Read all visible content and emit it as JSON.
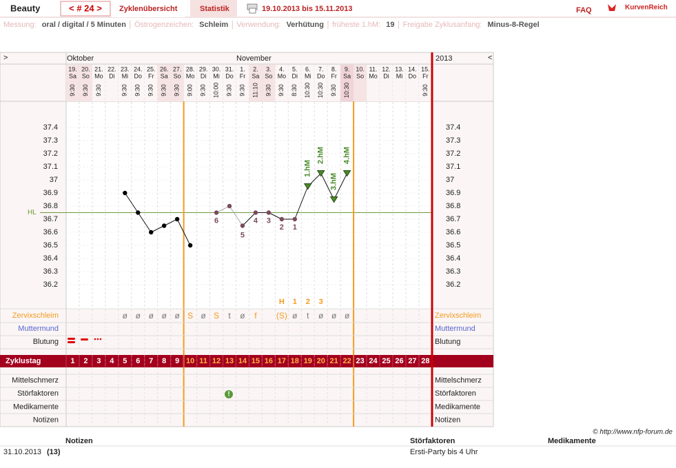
{
  "header": {
    "title": "Beauty",
    "cycle": "< # 24 >",
    "tabs": [
      "Zyklenübersicht",
      "Statistik"
    ],
    "range": "19.10.2013 bis 15.11.2013",
    "faq": "FAQ",
    "logo": "KurvenReich"
  },
  "info": [
    {
      "label": "Messung:",
      "value": "oral / digital / 5 Minuten"
    },
    {
      "label": "Östrogenzeichen:",
      "value": "Schleim"
    },
    {
      "label": "Verwendung:",
      "value": "Verhütung"
    },
    {
      "label": "früheste 1.hM:",
      "value": "19"
    },
    {
      "label": "Freigabe Zyklusanfang:",
      "value": "Minus-8-Regel"
    }
  ],
  "nav": {
    "left": ">",
    "right": "<",
    "months": [
      "Oktober",
      "November"
    ],
    "year": "2013"
  },
  "days": {
    "dates": [
      "19.",
      "20.",
      "21.",
      "22.",
      "23.",
      "24.",
      "25.",
      "26.",
      "27.",
      "28.",
      "29.",
      "30.",
      "31.",
      "1.",
      "2.",
      "3.",
      "4.",
      "5.",
      "6.",
      "7.",
      "8.",
      "9.",
      "10.",
      "11.",
      "12.",
      "13.",
      "14.",
      "15."
    ],
    "weekdays": [
      "Sa",
      "So",
      "Mo",
      "Di",
      "Mi",
      "Do",
      "Fr",
      "Sa",
      "So",
      "Mo",
      "Di",
      "Mi",
      "Do",
      "Fr",
      "Sa",
      "So",
      "Mo",
      "Di",
      "Mi",
      "Do",
      "Fr",
      "Sa",
      "So",
      "Mo",
      "Di",
      "Mi",
      "Do",
      "Fr"
    ],
    "times": [
      "9:30",
      "9:30",
      "9:30",
      null,
      "9:30",
      "9:30",
      "9:30",
      "9:30",
      "9:30",
      "9:00",
      "9:30",
      "10:00",
      "9:30",
      "9:30",
      "11:10",
      "9:30",
      "9:30",
      "8:30",
      "10:30",
      "10:30",
      "9:30",
      "10:30",
      null,
      null,
      null,
      null,
      null,
      "9:30"
    ]
  },
  "temperature": {
    "ylim": [
      36.2,
      37.4
    ],
    "yticks": [
      36.2,
      36.3,
      36.4,
      36.5,
      36.6,
      36.7,
      36.8,
      36.9,
      37,
      37.1,
      37.2,
      37.3,
      37.4
    ],
    "values": [
      null,
      null,
      null,
      null,
      36.9,
      36.75,
      36.6,
      36.65,
      36.7,
      36.5,
      null,
      36.75,
      36.8,
      36.65,
      36.75,
      36.75,
      36.7,
      36.7,
      36.95,
      37.05,
      36.85,
      37.05,
      null,
      null,
      null,
      null,
      null,
      null
    ],
    "styles": [
      null,
      null,
      null,
      null,
      "dot",
      "dot",
      "dot",
      "dot",
      "dot",
      "dot",
      null,
      "grey",
      "grey",
      "grey",
      "grey",
      "grey",
      "grey",
      "grey",
      "triangle",
      "triangle",
      "triangle",
      "triangle",
      null,
      null,
      null,
      null,
      null,
      null
    ],
    "low_counts": [
      null,
      null,
      null,
      null,
      null,
      null,
      null,
      null,
      null,
      null,
      null,
      6,
      null,
      5,
      4,
      3,
      2,
      1,
      null,
      null,
      null,
      null,
      null,
      null,
      null,
      null,
      null,
      null
    ],
    "high_labels": [
      null,
      null,
      null,
      null,
      null,
      null,
      null,
      null,
      null,
      null,
      null,
      null,
      null,
      null,
      null,
      null,
      null,
      null,
      "1.hM",
      "2.hM",
      "3.hM",
      "4.hM",
      null,
      null,
      null,
      null,
      null,
      null
    ],
    "cover_line": 36.75,
    "cover_label": "HL"
  },
  "mucus": {
    "counts": [
      null,
      null,
      null,
      null,
      null,
      null,
      null,
      null,
      null,
      null,
      null,
      null,
      null,
      null,
      null,
      null,
      "H",
      1,
      2,
      3,
      null,
      null,
      null,
      null,
      null,
      null,
      null,
      null
    ],
    "symbols": [
      null,
      null,
      null,
      null,
      "ø",
      "ø",
      "ø",
      "ø",
      "ø",
      "S",
      "ø",
      "S",
      "t",
      "ø",
      "f",
      null,
      "(S)",
      "ø",
      "t",
      "ø",
      "ø",
      "ø",
      null,
      null,
      null,
      null,
      null,
      null
    ]
  },
  "rows_upper": [
    "Zervixschleim",
    "Muttermund",
    "Blutung"
  ],
  "cycle_label": "Zyklustag",
  "cycle_days": [
    1,
    2,
    3,
    4,
    5,
    6,
    7,
    8,
    9,
    10,
    11,
    12,
    13,
    14,
    15,
    16,
    17,
    18,
    19,
    20,
    21,
    22,
    23,
    24,
    25,
    26,
    27,
    28
  ],
  "fertile_window": {
    "start": 10,
    "end": 22
  },
  "rows_lower": [
    "Mittelschmerz",
    "Störfaktoren",
    "Medikamente",
    "Notizen"
  ],
  "copyright": "© http://www.nfp-forum.de",
  "notes": {
    "headers": [
      "Notizen",
      "Störfaktoren",
      "Medikamente"
    ],
    "row": [
      "31.10.2013",
      "(13)",
      "Ersti-Party bis 4 Uhr"
    ]
  }
}
